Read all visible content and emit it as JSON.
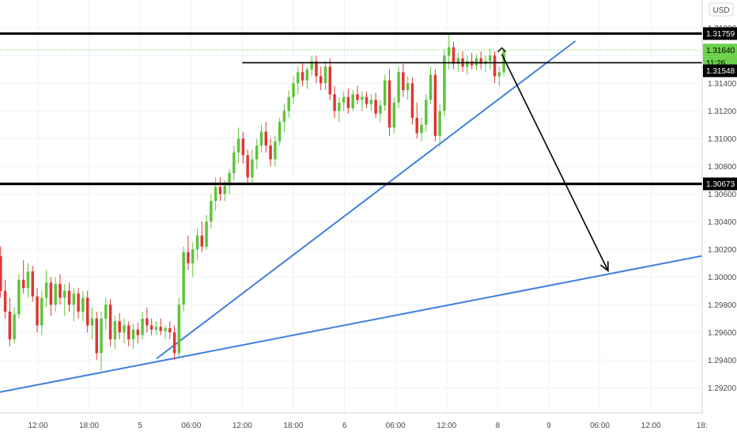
{
  "chart_data": {
    "type": "candlestick",
    "currency": "USD",
    "colors": {
      "up": "#5ec43a",
      "down": "#e03535",
      "trendline": "#3f7fe0",
      "level": "#000000",
      "current_price_line": "#6bd04a",
      "current_price_badge": "#6bd04a",
      "arrow": "#000000",
      "grid": "#eef2f7",
      "axis_border": "#d6d6d6"
    },
    "ylim": [
      1.2911,
      1.3203
    ],
    "x_range": [
      0,
      7.0
    ],
    "x_unit": "trading-session index (days from first label day)",
    "y_ticks": [
      1.292,
      1.294,
      1.296,
      1.298,
      1.3,
      1.302,
      1.304,
      1.306,
      1.308,
      1.31,
      1.312,
      1.314,
      1.316,
      1.318
    ],
    "y_tick_labels": [
      "1.29200",
      "1.29400",
      "1.29600",
      "1.29800",
      "1.30000",
      "1.30200",
      "1.30400",
      "1.30600",
      "1.30800",
      "1.31000",
      "1.31200",
      "1.31400",
      "1.31600",
      "1.31800"
    ],
    "x_ticks": [
      {
        "x": 0.25,
        "label": "12:00"
      },
      {
        "x": 0.5,
        "label": "18:00"
      },
      {
        "x": 0.75,
        "label": "5"
      },
      {
        "x": 1.0,
        "label": "06:00"
      },
      {
        "x": 1.25,
        "label": "12:00"
      },
      {
        "x": 1.5,
        "label": "18:00"
      },
      {
        "x": 1.75,
        "label": "6"
      },
      {
        "x": 2.0,
        "label": "06:00"
      },
      {
        "x": 2.25,
        "label": "12:00"
      },
      {
        "x": 2.5,
        "label": "8"
      },
      {
        "x": 2.75,
        "label": "9"
      },
      {
        "x": 3.0,
        "label": "06:00"
      },
      {
        "x": 3.25,
        "label": "12:00"
      },
      {
        "x": 3.5,
        "label": "18:"
      }
    ],
    "horizontal_levels": [
      {
        "value": 1.31759,
        "label": "1.31759",
        "thickness": "thick"
      },
      {
        "value": 1.30673,
        "label": "1.30673",
        "thickness": "thick"
      },
      {
        "value": 1.31548,
        "label": "",
        "thickness": "thin",
        "x_start": 1.25
      }
    ],
    "price_badges": [
      {
        "value": 1.31759,
        "label": "1.31759",
        "style": "level"
      },
      {
        "value": 1.3164,
        "label": "1.31640",
        "style": "current"
      },
      {
        "value": 1.31548,
        "label": "11:26",
        "style": "countdown"
      },
      {
        "value": 1.3149,
        "label": "1.31548",
        "style": "level"
      },
      {
        "value": 1.30673,
        "label": "1.30673",
        "style": "level"
      }
    ],
    "current_price": 1.3164,
    "trendlines": [
      {
        "from": {
          "x": 0.0,
          "y": 1.2915
        },
        "to": {
          "x": 3.56,
          "y": 1.3017
        }
      },
      {
        "from": {
          "x": 0.83,
          "y": 1.2941
        },
        "to": {
          "x": 2.88,
          "y": 1.31705
        }
      }
    ],
    "arrow": {
      "from": {
        "x": 2.52,
        "y": 1.3161
      },
      "to": {
        "x": 3.04,
        "y": 1.30045
      }
    },
    "candles_x_step": 0.02,
    "candles": [
      [
        1.3034,
        1.305,
        1.302,
        1.3045
      ],
      [
        1.3045,
        1.3051,
        1.3028,
        1.303
      ],
      [
        1.303,
        1.304,
        1.3012,
        1.3015
      ],
      [
        1.3015,
        1.3022,
        1.2985,
        1.299
      ],
      [
        1.299,
        1.2998,
        1.297,
        1.2975
      ],
      [
        1.2975,
        1.2985,
        1.295,
        1.2955
      ],
      [
        1.2955,
        1.2978,
        1.2952,
        1.2973
      ],
      [
        1.2973,
        1.3002,
        1.297,
        1.2998
      ],
      [
        1.2998,
        1.3012,
        1.2988,
        1.2992
      ],
      [
        1.2992,
        1.301,
        1.2985,
        1.3004
      ],
      [
        1.3004,
        1.3008,
        1.2982,
        1.2986
      ],
      [
        1.2986,
        1.2992,
        1.296,
        1.2965
      ],
      [
        1.2965,
        1.299,
        1.2958,
        1.2985
      ],
      [
        1.2985,
        1.3005,
        1.2978,
        1.2996
      ],
      [
        1.2996,
        1.3,
        1.2972,
        1.298
      ],
      [
        1.298,
        1.3,
        1.2975,
        1.2995
      ],
      [
        1.2995,
        1.3002,
        1.298,
        1.2985
      ],
      [
        1.2985,
        1.2995,
        1.2972,
        1.299
      ],
      [
        1.299,
        1.2996,
        1.2975,
        1.298
      ],
      [
        1.298,
        1.2992,
        1.2968,
        1.2988
      ],
      [
        1.2988,
        1.2992,
        1.297,
        1.2975
      ],
      [
        1.2975,
        1.299,
        1.2968,
        1.2985
      ],
      [
        1.2985,
        1.299,
        1.296,
        1.2965
      ],
      [
        1.2965,
        1.2978,
        1.2955,
        1.297
      ],
      [
        1.297,
        1.2975,
        1.294,
        1.2945
      ],
      [
        1.2945,
        1.2975,
        1.2932,
        1.297
      ],
      [
        1.297,
        1.2985,
        1.2962,
        1.298
      ],
      [
        1.298,
        1.2984,
        1.295,
        1.2955
      ],
      [
        1.2955,
        1.2972,
        1.2948,
        1.2968
      ],
      [
        1.2968,
        1.2974,
        1.2955,
        1.296
      ],
      [
        1.296,
        1.297,
        1.2952,
        1.2965
      ],
      [
        1.2965,
        1.2968,
        1.295,
        1.2955
      ],
      [
        1.2955,
        1.2966,
        1.2948,
        1.2962
      ],
      [
        1.2962,
        1.2967,
        1.2952,
        1.2958
      ],
      [
        1.2958,
        1.2975,
        1.2955,
        1.297
      ],
      [
        1.297,
        1.2978,
        1.296,
        1.2965
      ],
      [
        1.2965,
        1.297,
        1.2958,
        1.2962
      ],
      [
        1.2962,
        1.2968,
        1.2958,
        1.2964
      ],
      [
        1.2964,
        1.297,
        1.2958,
        1.2961
      ],
      [
        1.2961,
        1.2965,
        1.2955,
        1.2963
      ],
      [
        1.2963,
        1.2968,
        1.2955,
        1.296
      ],
      [
        1.296,
        1.2965,
        1.294,
        1.2945
      ],
      [
        1.2945,
        1.2985,
        1.2941,
        1.298
      ],
      [
        1.298,
        1.3022,
        1.2975,
        1.3018
      ],
      [
        1.3018,
        1.303,
        1.3005,
        1.301
      ],
      [
        1.301,
        1.3025,
        1.3,
        1.302
      ],
      [
        1.302,
        1.3035,
        1.3012,
        1.303
      ],
      [
        1.303,
        1.304,
        1.3018,
        1.3022
      ],
      [
        1.3022,
        1.3045,
        1.302,
        1.304
      ],
      [
        1.304,
        1.306,
        1.3035,
        1.3055
      ],
      [
        1.3055,
        1.3072,
        1.3048,
        1.3065
      ],
      [
        1.3065,
        1.3072,
        1.3055,
        1.306
      ],
      [
        1.306,
        1.307,
        1.3055,
        1.3066
      ],
      [
        1.3066,
        1.3078,
        1.306,
        1.3075
      ],
      [
        1.3075,
        1.3095,
        1.307,
        1.309
      ],
      [
        1.309,
        1.3108,
        1.3082,
        1.31
      ],
      [
        1.31,
        1.3105,
        1.3082,
        1.3088
      ],
      [
        1.3088,
        1.3092,
        1.3068,
        1.3072
      ],
      [
        1.3072,
        1.3092,
        1.3068,
        1.3085
      ],
      [
        1.3085,
        1.31,
        1.3078,
        1.3095
      ],
      [
        1.3095,
        1.311,
        1.309,
        1.3105
      ],
      [
        1.3105,
        1.3112,
        1.309,
        1.3095
      ],
      [
        1.3095,
        1.31,
        1.308,
        1.3085
      ],
      [
        1.3085,
        1.3102,
        1.308,
        1.3098
      ],
      [
        1.3098,
        1.3115,
        1.3095,
        1.3112
      ],
      [
        1.3112,
        1.3125,
        1.3105,
        1.312
      ],
      [
        1.312,
        1.3135,
        1.3115,
        1.313
      ],
      [
        1.313,
        1.3145,
        1.3125,
        1.314
      ],
      [
        1.314,
        1.3152,
        1.3132,
        1.3148
      ],
      [
        1.3148,
        1.3155,
        1.3138,
        1.3142
      ],
      [
        1.3142,
        1.3152,
        1.3136,
        1.315
      ],
      [
        1.315,
        1.316,
        1.3145,
        1.3156
      ],
      [
        1.3156,
        1.316,
        1.314,
        1.3145
      ],
      [
        1.3145,
        1.3152,
        1.3135,
        1.314
      ],
      [
        1.314,
        1.3156,
        1.3135,
        1.3152
      ],
      [
        1.3152,
        1.3158,
        1.3128,
        1.3132
      ],
      [
        1.3132,
        1.3138,
        1.3115,
        1.312
      ],
      [
        1.312,
        1.313,
        1.3112,
        1.3126
      ],
      [
        1.3126,
        1.3134,
        1.312,
        1.313
      ],
      [
        1.313,
        1.3136,
        1.3118,
        1.3122
      ],
      [
        1.3122,
        1.3135,
        1.312,
        1.3132
      ],
      [
        1.3132,
        1.3138,
        1.3125,
        1.3128
      ],
      [
        1.3128,
        1.3134,
        1.312,
        1.313
      ],
      [
        1.313,
        1.3134,
        1.3122,
        1.3125
      ],
      [
        1.3125,
        1.3132,
        1.312,
        1.3128
      ],
      [
        1.3128,
        1.3133,
        1.3115,
        1.3118
      ],
      [
        1.3118,
        1.3128,
        1.3112,
        1.3124
      ],
      [
        1.3124,
        1.3146,
        1.312,
        1.3142
      ],
      [
        1.3142,
        1.315,
        1.3102,
        1.3108
      ],
      [
        1.3108,
        1.313,
        1.3104,
        1.3126
      ],
      [
        1.3126,
        1.3152,
        1.3122,
        1.3148
      ],
      [
        1.3148,
        1.3154,
        1.313,
        1.3135
      ],
      [
        1.3135,
        1.3145,
        1.3128,
        1.314
      ],
      [
        1.314,
        1.3144,
        1.311,
        1.3115
      ],
      [
        1.3115,
        1.3126,
        1.31,
        1.3104
      ],
      [
        1.3104,
        1.3115,
        1.3098,
        1.311
      ],
      [
        1.311,
        1.3132,
        1.3105,
        1.3128
      ],
      [
        1.3128,
        1.3152,
        1.3125,
        1.3146
      ],
      [
        1.3146,
        1.315,
        1.3098,
        1.3102
      ],
      [
        1.3102,
        1.3125,
        1.3094,
        1.312
      ],
      [
        1.312,
        1.3165,
        1.3116,
        1.316
      ],
      [
        1.316,
        1.3176,
        1.315,
        1.3166
      ],
      [
        1.3166,
        1.317,
        1.315,
        1.3154
      ],
      [
        1.3154,
        1.3162,
        1.3148,
        1.3158
      ],
      [
        1.3158,
        1.3163,
        1.3148,
        1.3152
      ],
      [
        1.3152,
        1.316,
        1.3146,
        1.3156
      ],
      [
        1.3156,
        1.3162,
        1.315,
        1.3153
      ],
      [
        1.3153,
        1.3161,
        1.3149,
        1.3158
      ],
      [
        1.3158,
        1.3163,
        1.315,
        1.3154
      ],
      [
        1.3154,
        1.316,
        1.3148,
        1.3156
      ],
      [
        1.3156,
        1.3165,
        1.315,
        1.316
      ],
      [
        1.316,
        1.3163,
        1.314,
        1.3145
      ],
      [
        1.3145,
        1.3152,
        1.3138,
        1.3148
      ],
      [
        1.3148,
        1.3165,
        1.3145,
        1.3164
      ]
    ]
  }
}
